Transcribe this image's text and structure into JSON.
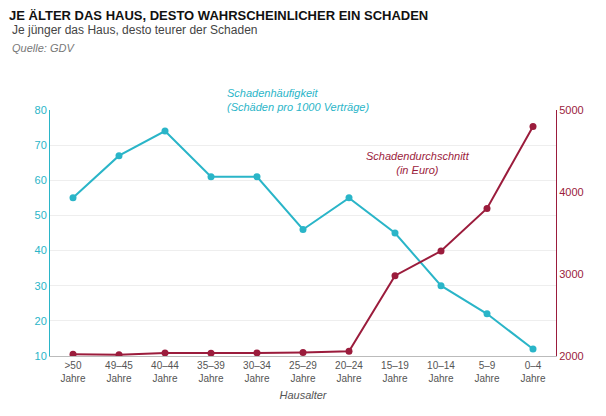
{
  "chart_data": {
    "type": "line",
    "title": "JE ÄLTER DAS HAUS, DESTO WAHRSCHEINLICHER EIN SCHADEN",
    "subtitle": "Je jünger das Haus, desto teurer der Schaden",
    "annotations": [
      "Quelle: GDV"
    ],
    "x_label": "Hausalter",
    "categories": [
      ">50\nJahre",
      "49–45\nJahre",
      "40–44\nJahre",
      "35–39\nJahre",
      "30–34\nJahre",
      "25–29\nJahre",
      "20–24\nJahre",
      "15–19\nJahre",
      "10–14\nJahre",
      "5–9\nJahre",
      "0–4\nJahre"
    ],
    "series": [
      {
        "name": "Schadenhäufigkeit\n(Schäden pro 1000 Verträge)",
        "color": "#2ab5c8",
        "marker": "circle",
        "values": [
          55,
          67,
          74,
          61,
          61,
          46,
          55,
          45,
          30,
          22,
          12
        ]
      },
      {
        "name": "Schadendurchschnitt\n(in Euro)",
        "color": "#9b1c3c",
        "marker": "circle",
        "axis": "y2",
        "values": [
          2020,
          2016,
          2037,
          2035,
          2037,
          2043,
          2059,
          2980,
          3280,
          3800,
          4800
        ]
      }
    ],
    "ylim": [
      10,
      80
    ],
    "yticks": [
      10,
      20,
      30,
      40,
      50,
      60,
      70,
      80
    ],
    "y2lim": [
      2000,
      5000
    ],
    "y2ticks": [
      2000,
      3000,
      4000,
      5000
    ],
    "grid": true
  }
}
